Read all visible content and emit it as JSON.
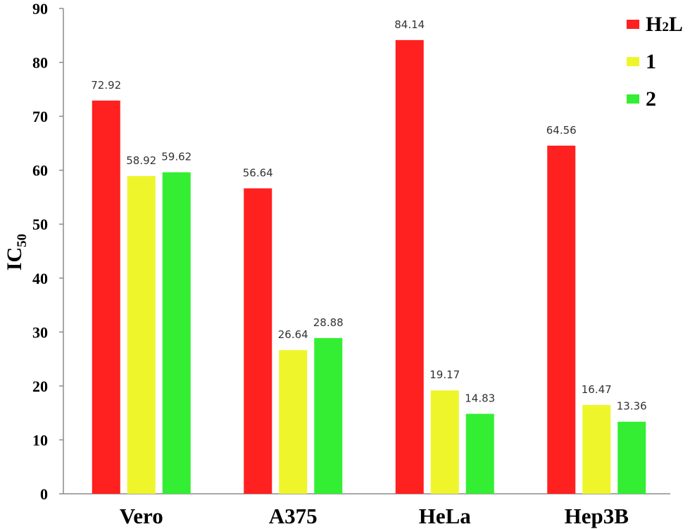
{
  "chart_data": {
    "type": "bar",
    "title": "",
    "xlabel": "",
    "ylabel": {
      "main": "IC",
      "sub": "50"
    },
    "ylim": [
      0,
      90
    ],
    "yticks": [
      0,
      10,
      20,
      30,
      40,
      50,
      60,
      70,
      80,
      90
    ],
    "grid": false,
    "legend_position": "top-right",
    "categories": [
      "Vero",
      "A375",
      "HeLa",
      "Hep3B"
    ],
    "series": [
      {
        "name": "H2L",
        "label_main": "H",
        "label_sub": "2",
        "label_tail": "L",
        "color": "#ff2020",
        "values": [
          72.92,
          56.64,
          84.14,
          64.56
        ]
      },
      {
        "name": "1",
        "label_main": "1",
        "label_sub": "",
        "label_tail": "",
        "color": "#eef52b",
        "values": [
          58.92,
          26.64,
          19.17,
          16.47
        ]
      },
      {
        "name": "2",
        "label_main": "2",
        "label_sub": "",
        "label_tail": "",
        "color": "#33ee33",
        "values": [
          59.62,
          28.88,
          14.83,
          13.36
        ]
      }
    ],
    "data_labels": [
      [
        "72.92",
        "56.64",
        "84.14",
        "64.56"
      ],
      [
        "58.92",
        "26.64",
        "19.17",
        "16.47"
      ],
      [
        "59.62",
        "28.88",
        "14.83",
        "13.36"
      ]
    ]
  }
}
